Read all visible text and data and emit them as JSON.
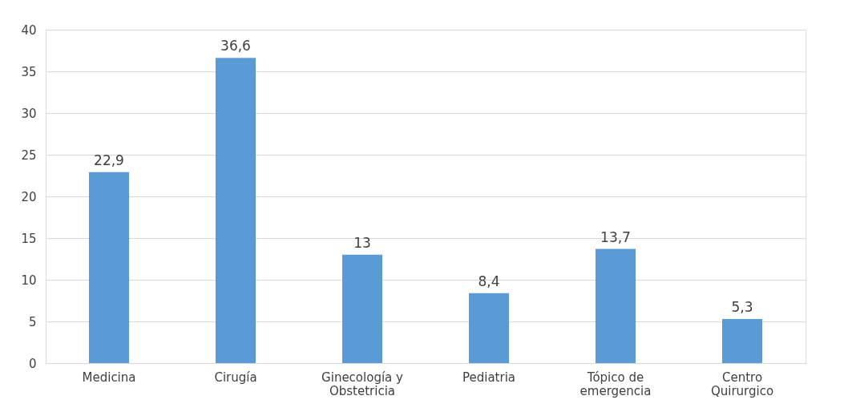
{
  "chart_data": {
    "type": "bar",
    "categories": [
      "Medicina",
      "Cirugía",
      "Ginecología y Obstetricia",
      "Pediatria",
      "Tópico de emergencia",
      "Centro Quirurgico"
    ],
    "values": [
      22.9,
      36.6,
      13,
      8.4,
      13.7,
      5.3
    ],
    "value_labels": [
      "22,9",
      "36,6",
      "13",
      "8,4",
      "13,7",
      "5,3"
    ],
    "color": "#5b9bd5",
    "ylim": [
      0,
      40
    ],
    "yticks": [
      0,
      5,
      10,
      15,
      20,
      25,
      30,
      35,
      40
    ],
    "grid": "y"
  }
}
